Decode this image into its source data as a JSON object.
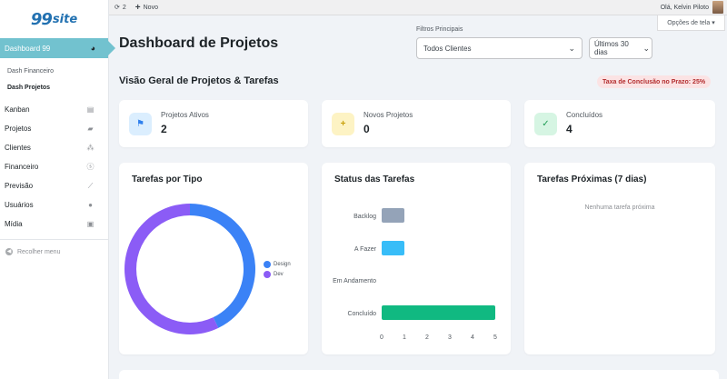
{
  "brand": {
    "number": "99",
    "word": "site"
  },
  "adminbar": {
    "updates_count": "2",
    "new_label": "Novo",
    "greeting": "Olá, Kelvin Piloto"
  },
  "screen_options": "Opções de tela",
  "sidebar": {
    "active": "Dashboard 99",
    "submenu": [
      "Dash Financeiro",
      "Dash Projetos"
    ],
    "items": [
      {
        "label": "Kanban",
        "icon": "table-icon"
      },
      {
        "label": "Projetos",
        "icon": "folder-icon"
      },
      {
        "label": "Clientes",
        "icon": "groups-icon"
      },
      {
        "label": "Financeiro",
        "icon": "money-icon"
      },
      {
        "label": "Previsão",
        "icon": "chart-line-icon"
      },
      {
        "label": "Usuários",
        "icon": "user-icon"
      },
      {
        "label": "Mídia",
        "icon": "media-icon"
      }
    ],
    "collapse": "Recolher menu"
  },
  "page": {
    "title": "Dashboard de Projetos",
    "filters_label": "Filtros Principais",
    "client_filter": "Todos Clientes",
    "period_filter": "Últimos 30 dias",
    "section_title": "Visão Geral de Projetos & Tarefas",
    "completion_badge": "Taxa de Conclusão no Prazo: 25%"
  },
  "stats": [
    {
      "label": "Projetos Ativos",
      "value": "2",
      "icon": "flag-icon",
      "bg": "#dbeefe",
      "fg": "#2f80ed"
    },
    {
      "label": "Novos Projetos",
      "value": "0",
      "icon": "plus-icon",
      "bg": "#fdf3c4",
      "fg": "#c9a20e"
    },
    {
      "label": "Concluídos",
      "value": "4",
      "icon": "check-icon",
      "bg": "#d6f5e3",
      "fg": "#1f9d55"
    }
  ],
  "cards": {
    "tipo_title": "Tarefas por Tipo",
    "status_title": "Status das Tarefas",
    "proximas_title": "Tarefas Próximas (7 dias)",
    "proximas_empty": "Nenhuma tarefa próxima"
  },
  "chart_data": [
    {
      "type": "pie",
      "title": "Tarefas por Tipo",
      "categories": [
        "Design",
        "Dev"
      ],
      "values": [
        3,
        4
      ],
      "colors": [
        "#3b82f6",
        "#8b5cf6"
      ],
      "legend": "right"
    },
    {
      "type": "bar",
      "orientation": "horizontal",
      "title": "Status das Tarefas",
      "categories": [
        "Backlog",
        "A Fazer",
        "Em Andamento",
        "Concluído"
      ],
      "values": [
        1,
        1,
        0,
        5
      ],
      "colors": [
        "#94a3b8",
        "#38bdf8",
        "#f59e0b",
        "#10b981"
      ],
      "xticks": [
        "0",
        "1",
        "2",
        "3",
        "4",
        "5"
      ],
      "xlim": [
        0,
        5
      ]
    }
  ]
}
